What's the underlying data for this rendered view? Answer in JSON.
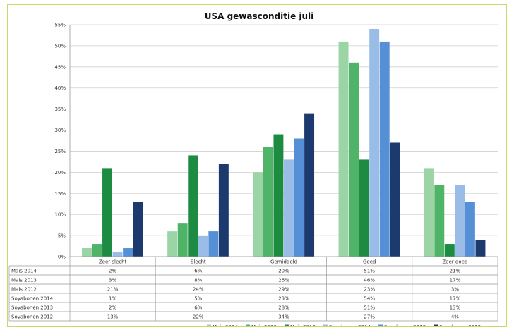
{
  "chart_data": {
    "type": "bar",
    "title": "USA gewasconditie juli",
    "categories": [
      "Zeer slecht",
      "Slecht",
      "Gemiddeld",
      "Goed",
      "Zeer goed"
    ],
    "ylim": [
      0,
      55
    ],
    "yticks": [
      "0%",
      "5%",
      "10%",
      "15%",
      "20%",
      "25%",
      "30%",
      "35%",
      "40%",
      "45%",
      "50%",
      "55%"
    ],
    "grid": true,
    "legend_position": "bottom-right",
    "series": [
      {
        "name": "Mais 2014",
        "values": [
          2,
          6,
          20,
          51,
          21
        ],
        "labels": [
          "2%",
          "6%",
          "20%",
          "51%",
          "21%"
        ],
        "color": "#9bd5a6"
      },
      {
        "name": "Mais 2013",
        "values": [
          3,
          8,
          26,
          46,
          17
        ],
        "labels": [
          "3%",
          "8%",
          "26%",
          "46%",
          "17%"
        ],
        "color": "#4fb467"
      },
      {
        "name": "Mais 2012",
        "values": [
          21,
          24,
          29,
          23,
          3
        ],
        "labels": [
          "21%",
          "24%",
          "29%",
          "23%",
          "3%"
        ],
        "color": "#1e8b43"
      },
      {
        "name": "Soyabonen 2014",
        "values": [
          1,
          5,
          23,
          54,
          17
        ],
        "labels": [
          "1%",
          "5%",
          "23%",
          "54%",
          "17%"
        ],
        "color": "#99bde6"
      },
      {
        "name": "Soyabonen 2013",
        "values": [
          2,
          6,
          28,
          51,
          13
        ],
        "labels": [
          "2%",
          "6%",
          "28%",
          "51%",
          "13%"
        ],
        "color": "#5590d6"
      },
      {
        "name": "Soyabonen 2012",
        "values": [
          13,
          22,
          34,
          27,
          4
        ],
        "labels": [
          "13%",
          "22%",
          "34%",
          "27%",
          "4%"
        ],
        "color": "#1d3a6e"
      }
    ]
  }
}
